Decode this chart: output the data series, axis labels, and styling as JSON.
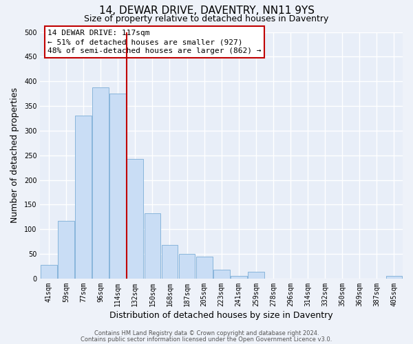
{
  "title": "14, DEWAR DRIVE, DAVENTRY, NN11 9YS",
  "subtitle": "Size of property relative to detached houses in Daventry",
  "xlabel": "Distribution of detached houses by size in Daventry",
  "ylabel": "Number of detached properties",
  "categories": [
    "41sqm",
    "59sqm",
    "77sqm",
    "96sqm",
    "114sqm",
    "132sqm",
    "150sqm",
    "168sqm",
    "187sqm",
    "205sqm",
    "223sqm",
    "241sqm",
    "259sqm",
    "278sqm",
    "296sqm",
    "314sqm",
    "332sqm",
    "350sqm",
    "369sqm",
    "387sqm",
    "405sqm"
  ],
  "values": [
    28,
    117,
    330,
    388,
    375,
    242,
    133,
    68,
    50,
    45,
    18,
    6,
    14,
    0,
    0,
    0,
    0,
    0,
    0,
    0,
    6
  ],
  "bar_color": "#c9ddf5",
  "bar_edge_color": "#7badd6",
  "vline_color": "#c00000",
  "vline_x_index": 4,
  "annotation_title": "14 DEWAR DRIVE: 117sqm",
  "annotation_line1": "← 51% of detached houses are smaller (927)",
  "annotation_line2": "48% of semi-detached houses are larger (862) →",
  "annotation_box_color": "#ffffff",
  "annotation_box_edge_color": "#c00000",
  "ylim": [
    0,
    500
  ],
  "yticks": [
    0,
    50,
    100,
    150,
    200,
    250,
    300,
    350,
    400,
    450,
    500
  ],
  "footer1": "Contains HM Land Registry data © Crown copyright and database right 2024.",
  "footer2": "Contains public sector information licensed under the Open Government Licence v3.0.",
  "bg_color": "#eef2f9",
  "plot_bg_color": "#e8eef8",
  "grid_color": "#ffffff",
  "title_fontsize": 11,
  "subtitle_fontsize": 9,
  "label_fontsize": 9,
  "tick_fontsize": 7,
  "footer_fontsize": 6,
  "annotation_fontsize": 8
}
